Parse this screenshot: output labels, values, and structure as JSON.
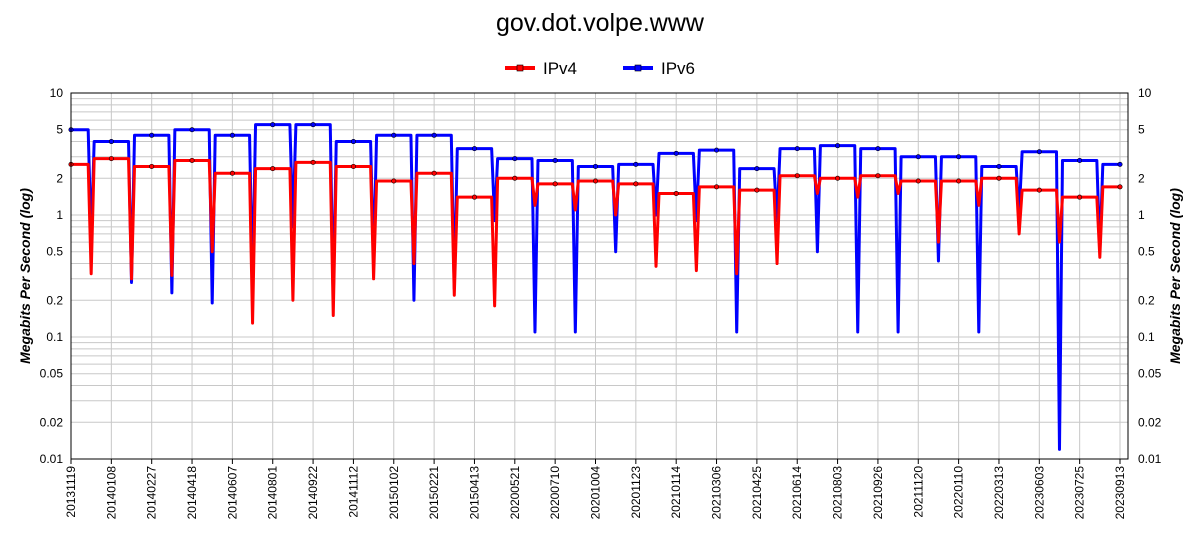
{
  "chart_data": {
    "type": "line",
    "title": "gov.dot.volpe.www",
    "ylabel": "Megabits Per Second (log)",
    "ylabel_right": "Megabits Per Second (log)",
    "y_scale": "log",
    "ylim": [
      0.01,
      10
    ],
    "y_ticks": [
      10,
      5,
      2,
      1,
      0.5,
      0.2,
      0.1,
      0.05,
      0.02,
      0.01
    ],
    "y_tick_labels": [
      "10",
      "5",
      "2",
      "1",
      "0.5",
      "0.2",
      "0.1",
      "0.05",
      "0.02",
      "0.01"
    ],
    "grid": true,
    "legend_position": "top-center",
    "categories": [
      "20131119",
      "20140108",
      "20140227",
      "20140418",
      "20140607",
      "20140801",
      "20140922",
      "20141112",
      "20150102",
      "20150221",
      "20150413",
      "20200521",
      "20200710",
      "20201004",
      "20201123",
      "20210114",
      "20210306",
      "20210425",
      "20210614",
      "20210803",
      "20210926",
      "20211120",
      "20220110",
      "20220313",
      "20230603",
      "20230725",
      "20230913"
    ],
    "series": [
      {
        "name": "IPv4",
        "color": "#ff0000",
        "values": [
          2.6,
          2.9,
          2.5,
          2.8,
          2.2,
          2.4,
          2.7,
          2.5,
          1.9,
          2.2,
          1.4,
          2.0,
          1.8,
          1.9,
          1.8,
          1.5,
          1.7,
          1.6,
          2.1,
          2.0,
          2.1,
          1.9,
          1.9,
          2.0,
          1.6,
          1.4,
          1.7
        ],
        "notable_min": [
          0.33,
          0.3,
          0.32,
          0.5,
          0.13,
          0.2,
          0.15,
          0.3,
          0.4,
          0.22,
          0.18,
          1.2,
          1.1,
          1.0,
          0.38,
          0.35,
          0.33,
          0.4,
          1.5,
          1.4,
          1.5,
          0.6,
          1.2,
          0.7,
          0.6,
          0.45,
          0.42
        ]
      },
      {
        "name": "IPv6",
        "color": "#0000ff",
        "values": [
          5.0,
          4.0,
          4.5,
          5.0,
          4.5,
          5.5,
          5.5,
          4.0,
          4.5,
          4.5,
          3.5,
          2.9,
          2.8,
          2.5,
          2.6,
          3.2,
          3.4,
          2.4,
          3.5,
          3.7,
          3.5,
          3.0,
          3.0,
          2.5,
          3.3,
          2.8,
          2.6
        ],
        "notable_min": [
          0.6,
          0.28,
          0.23,
          0.19,
          0.27,
          0.8,
          0.2,
          0.4,
          0.2,
          0.25,
          0.9,
          0.11,
          0.11,
          0.5,
          1.0,
          0.9,
          0.11,
          0.9,
          0.5,
          0.11,
          0.11,
          0.42,
          0.11,
          1.0,
          0.012,
          0.5,
          1.3
        ]
      }
    ]
  }
}
